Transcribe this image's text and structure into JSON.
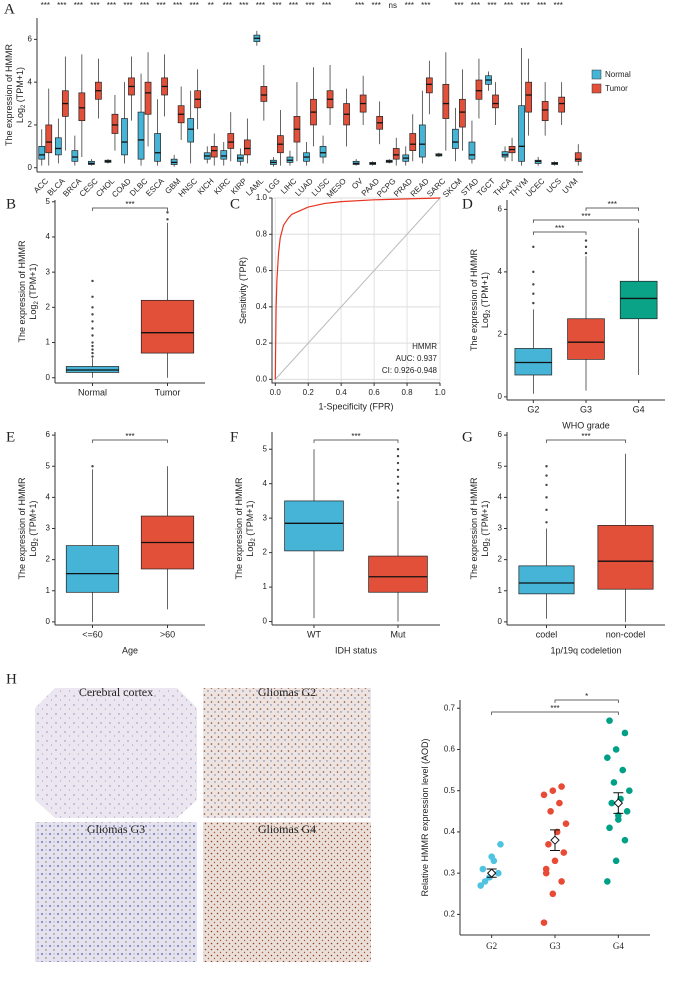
{
  "chart_data": [
    {
      "type": "grouped_box",
      "panel": "A",
      "y_label": "The expression of HMMR",
      "y_label_2": {
        "text": "Log",
        "sub": "2",
        "rest": " (TPM+1)"
      },
      "categories": [
        "ACC",
        "BLCA",
        "BRCA",
        "CESC",
        "CHOL",
        "COAD",
        "DLBC",
        "ESCA",
        "GBM",
        "HNSC",
        "KICH",
        "KIRC",
        "KIRP",
        "LAML",
        "LGG",
        "LIHC",
        "LUAD",
        "LUSC",
        "MESO",
        "OV",
        "PAAD",
        "PCPG",
        "PRAD",
        "READ",
        "SARC",
        "SKCM",
        "STAD",
        "TGCT",
        "THCA",
        "THYM",
        "UCEC",
        "UCS",
        "UVM"
      ],
      "significance": [
        "***",
        "***",
        "***",
        "***",
        "***",
        "***",
        "***",
        "***",
        "***",
        "***",
        "**",
        "***",
        "***",
        "***",
        "***",
        "***",
        "***",
        "***",
        null,
        "***",
        "***",
        "ns",
        "***",
        "***",
        null,
        "***",
        "***",
        "***",
        "***",
        "***",
        "***",
        "***",
        null
      ],
      "series": [
        {
          "name": "Normal",
          "color": "#45b4d6",
          "values": [
            [
              0.1,
              0.4,
              0.6,
              1.0,
              1.8
            ],
            [
              0.2,
              0.6,
              0.9,
              1.4,
              2.3
            ],
            [
              0.1,
              0.3,
              0.5,
              0.8,
              1.5
            ],
            [
              0.1,
              0.15,
              0.2,
              0.3,
              0.4
            ],
            [
              0.2,
              0.25,
              0.3,
              0.35,
              0.4
            ],
            [
              0.2,
              0.6,
              1.2,
              2.3,
              4.0
            ],
            [
              0.1,
              0.4,
              1.3,
              2.6,
              4.4
            ],
            [
              0.1,
              0.3,
              0.7,
              1.6,
              3.2
            ],
            [
              0.05,
              0.15,
              0.25,
              0.4,
              0.6
            ],
            [
              0.2,
              1.2,
              1.8,
              2.3,
              3.6
            ],
            [
              0.2,
              0.4,
              0.55,
              0.7,
              1.0
            ],
            [
              0.1,
              0.4,
              0.55,
              0.8,
              1.2
            ],
            [
              0.1,
              0.3,
              0.45,
              0.6,
              0.9
            ],
            [
              5.7,
              5.9,
              6.05,
              6.2,
              6.4
            ],
            [
              0.05,
              0.15,
              0.25,
              0.35,
              0.5
            ],
            [
              0.1,
              0.25,
              0.35,
              0.5,
              0.8
            ],
            [
              0.1,
              0.3,
              0.5,
              0.7,
              1.2
            ],
            [
              0.2,
              0.5,
              0.7,
              1.0,
              1.5
            ],
            null,
            [
              0.1,
              0.15,
              0.2,
              0.3,
              0.4
            ],
            [
              0.1,
              0.15,
              0.2,
              0.25,
              0.3
            ],
            [
              0.2,
              0.25,
              0.3,
              0.35,
              0.4
            ],
            [
              0.1,
              0.3,
              0.45,
              0.6,
              1.0
            ],
            [
              0.2,
              0.5,
              1.1,
              2.0,
              3.6
            ],
            [
              0.5,
              0.55,
              0.6,
              0.65,
              0.7
            ],
            [
              0.3,
              0.9,
              1.2,
              1.8,
              2.8
            ],
            [
              0.2,
              0.4,
              0.6,
              1.2,
              2.2
            ],
            [
              3.6,
              3.9,
              4.1,
              4.3,
              4.5
            ],
            [
              0.3,
              0.5,
              0.6,
              0.75,
              1.0
            ],
            [
              0.1,
              0.3,
              1.0,
              2.9,
              5.6
            ],
            [
              0.1,
              0.2,
              0.3,
              0.35,
              0.5
            ],
            [
              0.1,
              0.15,
              0.2,
              0.25,
              0.3
            ],
            null
          ]
        },
        {
          "name": "Tumor",
          "color": "#e2503a",
          "values": [
            [
              0.1,
              0.7,
              1.2,
              2.0,
              3.7
            ],
            [
              0.8,
              2.4,
              3.0,
              3.6,
              5.2
            ],
            [
              0.5,
              2.2,
              2.8,
              3.5,
              5.3
            ],
            [
              2.3,
              3.2,
              3.6,
              4.0,
              5.1
            ],
            [
              0.8,
              1.6,
              2.0,
              2.5,
              3.4
            ],
            [
              2.2,
              3.4,
              3.8,
              4.2,
              5.2
            ],
            [
              1.0,
              2.5,
              3.5,
              4.0,
              5.4
            ],
            [
              2.4,
              3.4,
              3.8,
              4.2,
              5.3
            ],
            [
              1.3,
              2.1,
              2.5,
              2.9,
              3.8
            ],
            [
              1.8,
              2.8,
              3.2,
              3.6,
              4.6
            ],
            [
              0.1,
              0.5,
              0.8,
              1.0,
              1.6
            ],
            [
              0.3,
              0.9,
              1.2,
              1.6,
              2.6
            ],
            [
              0.2,
              0.6,
              0.9,
              1.3,
              2.3
            ],
            [
              2.2,
              3.1,
              3.4,
              3.8,
              4.8
            ],
            [
              0.1,
              0.7,
              1.1,
              1.5,
              2.7
            ],
            [
              0.3,
              1.2,
              1.8,
              2.4,
              4.0
            ],
            [
              1.0,
              2.0,
              2.6,
              3.2,
              4.7
            ],
            [
              2.0,
              2.8,
              3.2,
              3.6,
              4.8
            ],
            [
              1.0,
              2.0,
              2.5,
              3.0,
              3.7
            ],
            [
              2.0,
              2.6,
              3.0,
              3.4,
              4.3
            ],
            [
              1.1,
              1.8,
              2.1,
              2.4,
              3.1
            ],
            [
              0.1,
              0.4,
              0.6,
              0.9,
              1.4
            ],
            [
              0.3,
              0.8,
              1.1,
              1.6,
              2.5
            ],
            [
              2.5,
              3.5,
              3.9,
              4.2,
              5.0
            ],
            [
              0.8,
              2.3,
              3.0,
              3.9,
              5.4
            ],
            [
              0.8,
              1.9,
              2.6,
              3.2,
              4.6
            ],
            [
              2.3,
              3.2,
              3.6,
              4.1,
              5.1
            ],
            [
              2.0,
              2.8,
              3.0,
              3.4,
              4.0
            ],
            [
              0.3,
              0.7,
              0.85,
              1.0,
              1.4
            ],
            [
              1.5,
              2.6,
              3.4,
              4.0,
              5.1
            ],
            [
              1.5,
              2.2,
              2.7,
              3.1,
              4.0
            ],
            [
              2.0,
              2.6,
              3.0,
              3.3,
              4.0
            ],
            [
              0.1,
              0.3,
              0.4,
              0.7,
              1.1
            ]
          ]
        }
      ],
      "ylim": [
        -0.2,
        7.0
      ],
      "yticks": [
        0,
        2,
        4,
        6
      ],
      "legend": "right"
    },
    {
      "type": "box",
      "panel": "B",
      "y_label": "The expression of HMMR",
      "y_label_2": {
        "text": "Log",
        "sub": "2",
        "rest": " (TPM+1)"
      },
      "categories": [
        "Normal",
        "Tumor"
      ],
      "colors": [
        "#45b4d6",
        "#e2503a"
      ],
      "values": [
        [
          0,
          0.15,
          0.22,
          0.32,
          0.55
        ],
        [
          0,
          0.7,
          1.28,
          2.2,
          4.4
        ]
      ],
      "outliers": [
        [
          0.6,
          0.7,
          0.8,
          0.9,
          1.0,
          1.2,
          1.4,
          1.6,
          1.8,
          2.0,
          2.3,
          2.75
        ],
        [
          4.5,
          4.7
        ]
      ],
      "comparisons": [
        {
          "groups": [
            "Normal",
            "Tumor"
          ],
          "label": "***"
        }
      ],
      "ylim": [
        -0.15,
        5.05
      ],
      "yticks": [
        0,
        1,
        2,
        3,
        4,
        5
      ]
    },
    {
      "type": "line",
      "panel": "C",
      "x_label": "1-Specificity (FPR)",
      "y_label": "Sensitivity (TPR)",
      "annotations": [
        "HMMR",
        "AUC: 0.937",
        "CI: 0.926-0.948"
      ],
      "color": "#e8321e",
      "x": [
        0,
        0.005,
        0.01,
        0.02,
        0.03,
        0.05,
        0.08,
        0.1,
        0.15,
        0.2,
        0.3,
        0.4,
        0.6,
        0.8,
        1.0
      ],
      "values": [
        0,
        0.4,
        0.55,
        0.7,
        0.78,
        0.85,
        0.89,
        0.91,
        0.93,
        0.95,
        0.97,
        0.98,
        0.99,
        0.995,
        1.0
      ],
      "xlim": [
        -0.02,
        1.0
      ],
      "ylim": [
        -0.02,
        1.0
      ],
      "xticks": [
        {
          "value": 0,
          "label": "0.0"
        },
        0.2,
        0.4,
        0.6,
        0.8,
        {
          "value": 1,
          "label": "1.0"
        }
      ],
      "yticks": [
        {
          "value": 0,
          "label": "0.0"
        },
        0.2,
        0.4,
        0.6,
        0.8,
        {
          "value": 1,
          "label": "1.0"
        }
      ],
      "grid": true
    },
    {
      "type": "box",
      "panel": "D",
      "x_label": "WHO grade",
      "y_label": "The expression of HMMR",
      "y_label_2": {
        "text": "Log",
        "sub": "2",
        "rest": " (TPM+1)"
      },
      "categories": [
        "G2",
        "G3",
        "G4"
      ],
      "colors": [
        "#45b4d6",
        "#e2503a",
        "#0aa387"
      ],
      "values": [
        [
          0.1,
          0.7,
          1.1,
          1.55,
          2.8
        ],
        [
          0.2,
          1.2,
          1.75,
          2.5,
          4.5
        ],
        [
          0.7,
          2.5,
          3.15,
          3.7,
          5.4
        ]
      ],
      "outliers": [
        [
          3.0,
          3.3,
          3.6,
          4.0,
          4.8
        ],
        [
          4.6,
          4.8,
          5.0
        ],
        []
      ],
      "comparisons": [
        {
          "groups": [
            "G3",
            "G4"
          ],
          "label": "***"
        },
        {
          "groups": [
            "G2",
            "G4"
          ],
          "label": "***"
        },
        {
          "groups": [
            "G2",
            "G3"
          ],
          "label": "***"
        }
      ],
      "ylim": [
        -0.1,
        6.3
      ],
      "yticks": [
        0,
        2,
        4,
        6
      ]
    },
    {
      "type": "box",
      "panel": "E",
      "x_label": "Age",
      "y_label": "The expression of HMMR",
      "y_label_2": {
        "text": "Log",
        "sub": "2",
        "rest": " (TPM+1)"
      },
      "categories": [
        "<=60",
        ">60"
      ],
      "colors": [
        "#45b4d6",
        "#e2503a"
      ],
      "values": [
        [
          0,
          0.95,
          1.55,
          2.45,
          4.9
        ],
        [
          0.4,
          1.7,
          2.55,
          3.4,
          5.0
        ]
      ],
      "outliers": [
        [
          5.0
        ],
        []
      ],
      "comparisons": [
        {
          "groups": [
            "<=60",
            ">60"
          ],
          "label": "***"
        }
      ],
      "ylim": [
        -0.1,
        6.1
      ],
      "yticks": [
        0,
        1,
        2,
        3,
        4,
        5,
        6
      ]
    },
    {
      "type": "box",
      "panel": "F",
      "x_label": "IDH status",
      "y_label": "The expression of HMMR",
      "y_label_2": {
        "text": "Log",
        "sub": "2",
        "rest": " (TPM+1)"
      },
      "categories": [
        "WT",
        "Mut"
      ],
      "colors": [
        "#45b4d6",
        "#e2503a"
      ],
      "values": [
        [
          0.1,
          2.05,
          2.85,
          3.5,
          5.0
        ],
        [
          0,
          0.85,
          1.3,
          1.9,
          3.5
        ]
      ],
      "outliers": [
        [],
        [
          3.6,
          3.8,
          4.0,
          4.2,
          4.4,
          4.6,
          4.8,
          5.0
        ]
      ],
      "comparisons": [
        {
          "groups": [
            "WT",
            "Mut"
          ],
          "label": "***"
        }
      ],
      "ylim": [
        -0.1,
        5.5
      ],
      "yticks": [
        0,
        1,
        2,
        3,
        4,
        5
      ]
    },
    {
      "type": "box",
      "panel": "G",
      "x_label": "1p/19q codeletion",
      "y_label": "The expression of HMMR",
      "y_label_2": {
        "text": "Log",
        "sub": "2",
        "rest": " (TPM+1)"
      },
      "categories": [
        "codel",
        "non-codel"
      ],
      "colors": [
        "#45b4d6",
        "#e2503a"
      ],
      "values": [
        [
          0.1,
          0.9,
          1.25,
          1.8,
          3.0
        ],
        [
          0,
          1.05,
          1.95,
          3.1,
          5.4
        ]
      ],
      "outliers": [
        [
          3.2,
          3.6,
          4.0,
          4.4,
          4.7,
          5.0
        ],
        []
      ],
      "comparisons": [
        {
          "groups": [
            "codel",
            "non-codel"
          ],
          "label": "***"
        }
      ],
      "ylim": [
        -0.1,
        6.1
      ],
      "yticks": [
        0,
        1,
        2,
        3,
        4,
        5,
        6
      ]
    },
    {
      "type": "strip",
      "y_label": "Relative HMMR expression level (AOD)",
      "categories": [
        "G2",
        "G3",
        "G4"
      ],
      "colors": [
        "#4fc3e0",
        "#e84a35",
        "#00a087"
      ],
      "values": [
        [
          0.27,
          0.29,
          0.3,
          0.31,
          0.34,
          0.37,
          0.28,
          0.33
        ],
        [
          0.18,
          0.25,
          0.28,
          0.31,
          0.33,
          0.35,
          0.37,
          0.4,
          0.42,
          0.45,
          0.47,
          0.49,
          0.5,
          0.51,
          0.3,
          0.38
        ],
        [
          0.28,
          0.33,
          0.38,
          0.41,
          0.43,
          0.45,
          0.47,
          0.48,
          0.5,
          0.52,
          0.55,
          0.58,
          0.6,
          0.64,
          0.67,
          0.44
        ]
      ],
      "mean": [
        0.3,
        0.38,
        0.47
      ],
      "se": [
        0.01,
        0.025,
        0.025
      ],
      "comparisons": [
        {
          "groups": [
            "G3",
            "G4"
          ],
          "label": "*"
        },
        {
          "groups": [
            "G2",
            "G4"
          ],
          "label": "***"
        }
      ],
      "ylim": [
        0.15,
        0.72
      ],
      "yticks": [
        0.2,
        0.3,
        0.4,
        0.5,
        0.6,
        0.7
      ]
    }
  ],
  "images": {
    "panel": "H",
    "labels": [
      "Cerebral cortex",
      "Gliomas G2",
      "Gliomas G3",
      "Gliomas G4"
    ]
  }
}
